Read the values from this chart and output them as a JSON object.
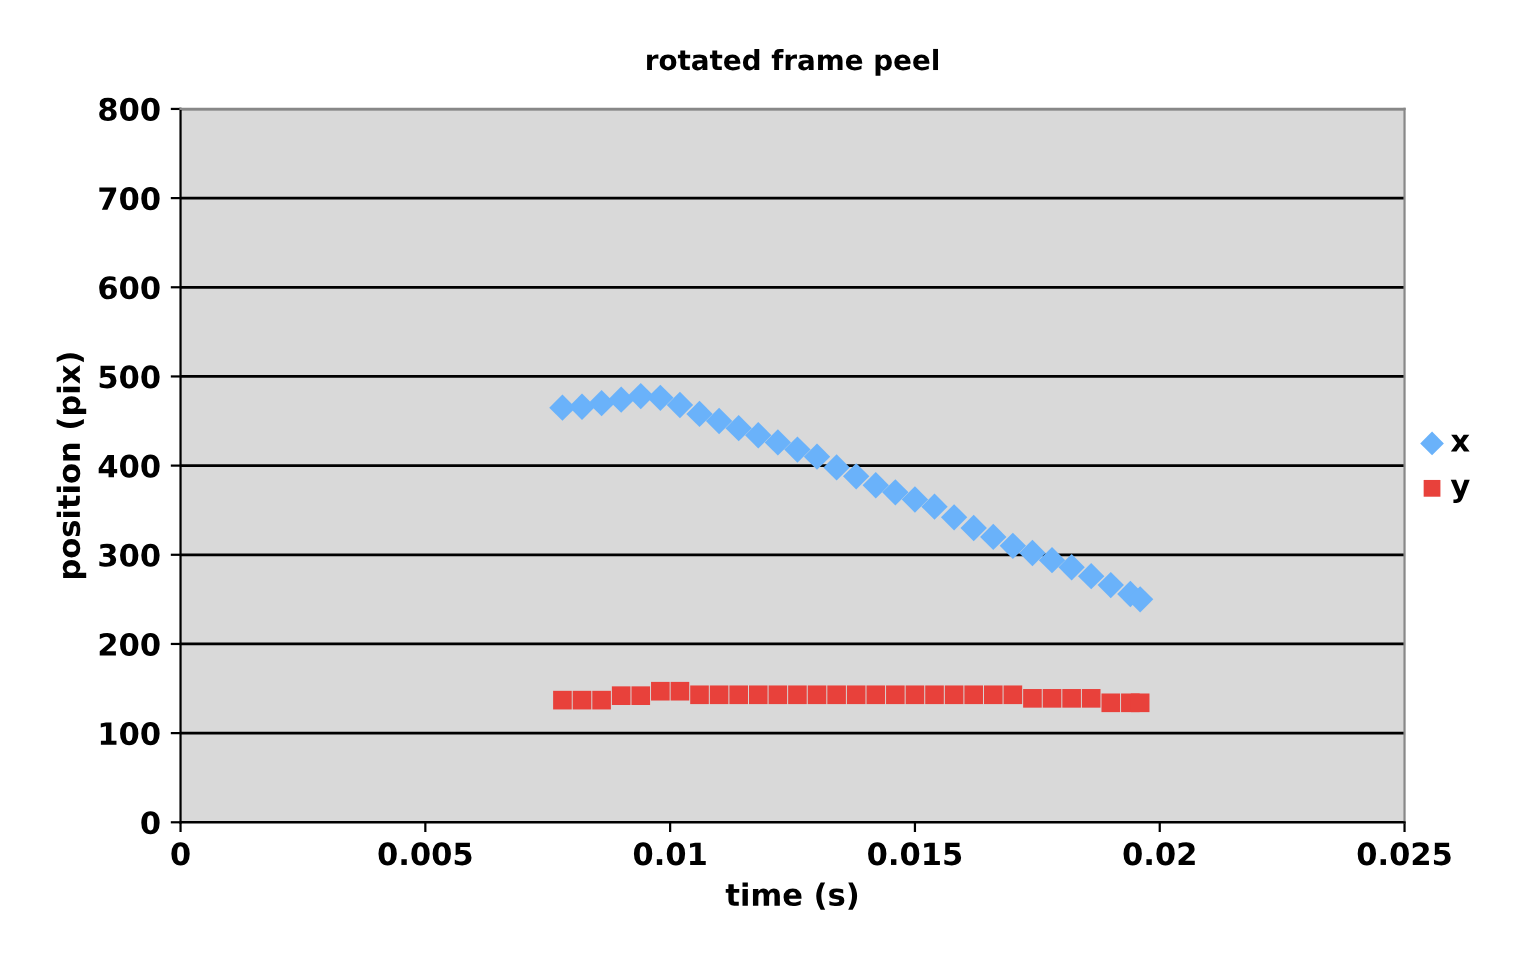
{
  "chart_data": {
    "type": "scatter",
    "title": "rotated frame peel",
    "xlabel": "time (s)",
    "ylabel": "position (pix)",
    "xlim": [
      0,
      0.025
    ],
    "xticks": [
      0,
      0.005,
      0.01,
      0.015,
      0.02,
      0.025
    ],
    "ylim": [
      0,
      800
    ],
    "yticks": [
      0,
      100,
      200,
      300,
      400,
      500,
      600,
      700,
      800
    ],
    "grid": "y",
    "legend": "right",
    "series": [
      {
        "name": "x",
        "color": "#6ab2fa",
        "marker": "diamond",
        "x": [
          0.0078,
          0.0082,
          0.0086,
          0.009,
          0.0094,
          0.0098,
          0.0102,
          0.0106,
          0.011,
          0.0114,
          0.0118,
          0.0122,
          0.0126,
          0.013,
          0.0134,
          0.0138,
          0.0142,
          0.0146,
          0.015,
          0.0154,
          0.0158,
          0.0162,
          0.0166,
          0.017,
          0.0174,
          0.0178,
          0.0182,
          0.0186,
          0.019,
          0.0194,
          0.0196
        ],
        "values": [
          465,
          466,
          470,
          474,
          478,
          476,
          468,
          458,
          450,
          442,
          434,
          426,
          418,
          410,
          398,
          388,
          378,
          370,
          362,
          354,
          342,
          330,
          320,
          310,
          302,
          294,
          286,
          276,
          266,
          256,
          250
        ]
      },
      {
        "name": "y",
        "color": "#e8413b",
        "marker": "square",
        "x": [
          0.0078,
          0.0082,
          0.0086,
          0.009,
          0.0094,
          0.0098,
          0.0102,
          0.0106,
          0.011,
          0.0114,
          0.0118,
          0.0122,
          0.0126,
          0.013,
          0.0134,
          0.0138,
          0.0142,
          0.0146,
          0.015,
          0.0154,
          0.0158,
          0.0162,
          0.0166,
          0.017,
          0.0174,
          0.0178,
          0.0182,
          0.0186,
          0.019,
          0.0194,
          0.0196
        ],
        "values": [
          137,
          137,
          137,
          142,
          142,
          147,
          147,
          143,
          143,
          143,
          143,
          143,
          143,
          143,
          143,
          143,
          143,
          143,
          143,
          143,
          143,
          143,
          143,
          143,
          139,
          139,
          139,
          139,
          134,
          134,
          134
        ]
      }
    ]
  }
}
